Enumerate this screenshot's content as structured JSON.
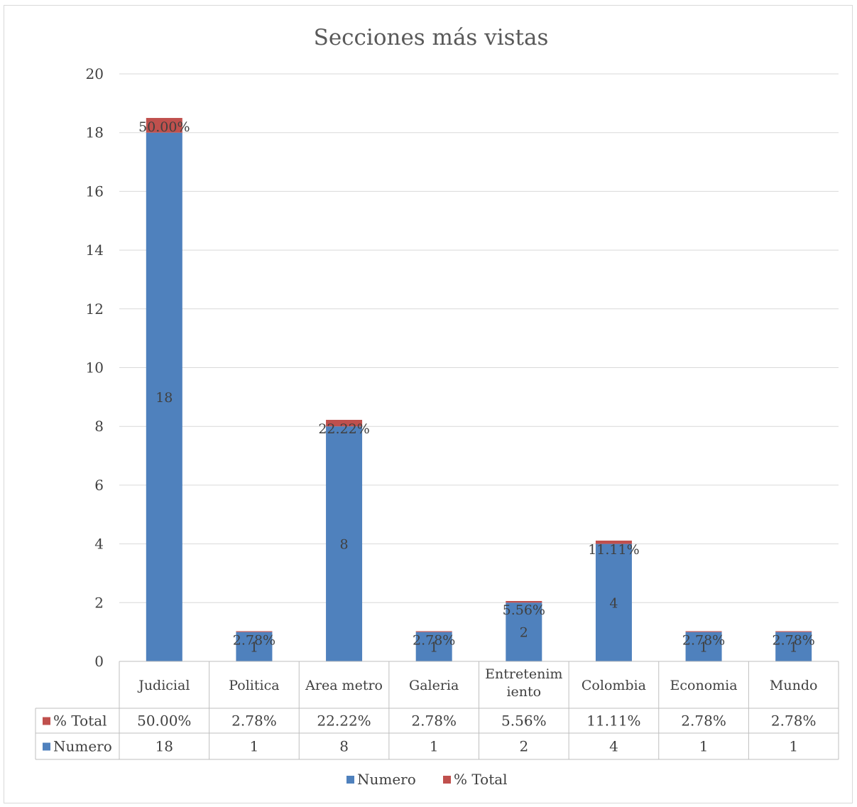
{
  "chart_data": {
    "type": "bar",
    "stacked": true,
    "title": "Secciones más vistas",
    "categories": [
      "Judicial",
      "Politica",
      "Area metro",
      "Galeria",
      "Entretenimiento",
      "Colombia",
      "Economia",
      "Mundo"
    ],
    "category_label_lines": [
      [
        "Judicial"
      ],
      [
        "Politica"
      ],
      [
        "Area metro"
      ],
      [
        "Galeria"
      ],
      [
        "Entretenim",
        "iento"
      ],
      [
        "Colombia"
      ],
      [
        "Economia"
      ],
      [
        "Mundo"
      ]
    ],
    "series": [
      {
        "name": "Numero",
        "color": "#4f81bd",
        "values": [
          18,
          1,
          8,
          1,
          2,
          4,
          1,
          1
        ],
        "labels": [
          "18",
          "1",
          "8",
          "1",
          "2",
          "4",
          "1",
          "1"
        ]
      },
      {
        "name": "% Total",
        "color": "#c0504d",
        "values": [
          0.5,
          0.0278,
          0.2222,
          0.0278,
          0.0556,
          0.1111,
          0.0278,
          0.0278
        ],
        "labels": [
          "50.00%",
          "2.78%",
          "22.22%",
          "2.78%",
          "5.56%",
          "11.11%",
          "2.78%",
          "2.78%"
        ]
      }
    ],
    "y_ticks": [
      "0",
      "2",
      "4",
      "6",
      "8",
      "10",
      "12",
      "14",
      "16",
      "18",
      "20"
    ],
    "ylim": [
      0,
      20
    ],
    "grid": true,
    "data_table": true,
    "legend_position": "bottom"
  }
}
